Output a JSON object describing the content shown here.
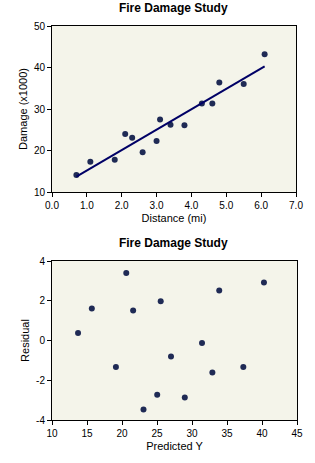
{
  "chart_data": [
    {
      "type": "scatter",
      "title": "Fire Damage Study",
      "x_label": "Distance (mi)",
      "y_label": "Damage (x1000)",
      "xlim": [
        0,
        7
      ],
      "xticks": [
        {
          "value": 0,
          "label": "0.0"
        },
        {
          "value": 1,
          "label": "1.0"
        },
        {
          "value": 2,
          "label": "2.0"
        },
        {
          "value": 3,
          "label": "3.0"
        },
        {
          "value": 4,
          "label": "4.0"
        },
        {
          "value": 5,
          "label": "5.0"
        },
        {
          "value": 6,
          "label": "6.0"
        },
        {
          "value": 7,
          "label": "7.0"
        }
      ],
      "ylim": [
        10,
        50
      ],
      "yticks": [
        10,
        20,
        30,
        40,
        50
      ],
      "grid": false,
      "series": [
        {
          "type": "scatter",
          "marker": "circle",
          "color": "#1f2a55",
          "x": [
            3.4,
            1.8,
            4.6,
            2.3,
            3.1,
            5.5,
            0.7,
            3.0,
            2.6,
            4.3,
            2.1,
            1.1,
            6.1,
            4.8,
            3.8
          ],
          "values": [
            26.2,
            17.8,
            31.3,
            23.1,
            27.5,
            36.0,
            14.1,
            22.3,
            19.6,
            31.3,
            24.0,
            17.3,
            43.2,
            36.4,
            26.1
          ]
        },
        {
          "type": "line",
          "line_style": "solid",
          "color": "#000066",
          "x": [
            0.7,
            6.1
          ],
          "values": [
            13.72,
            40.28
          ]
        }
      ]
    },
    {
      "type": "scatter",
      "title": "Fire Damage Study",
      "x_label": "Predicted Y",
      "y_label": "Residual",
      "xlim": [
        10,
        45
      ],
      "xticks": [
        10,
        15,
        20,
        25,
        30,
        35,
        40,
        45
      ],
      "ylim": [
        -4,
        4
      ],
      "yticks": [
        -4,
        -2,
        0,
        2,
        4
      ],
      "grid": false,
      "series": [
        {
          "type": "scatter",
          "marker": "circle",
          "color": "#1f2a55",
          "x": [
            27.0,
            19.13,
            32.91,
            21.59,
            25.53,
            37.33,
            13.72,
            25.03,
            23.07,
            31.43,
            20.61,
            15.69,
            40.28,
            33.89,
            28.97
          ],
          "values": [
            -0.8,
            -1.33,
            -1.61,
            1.51,
            1.97,
            -1.33,
            0.38,
            -2.73,
            -3.47,
            -0.13,
            3.39,
            1.61,
            2.92,
            2.51,
            -2.87
          ]
        }
      ]
    }
  ]
}
